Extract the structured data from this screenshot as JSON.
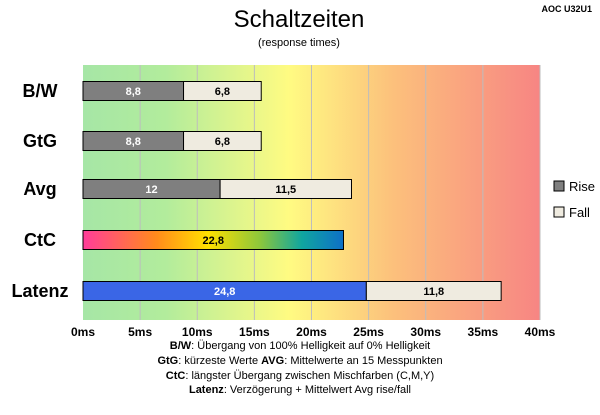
{
  "model": "AOC U32U1",
  "chart_data": {
    "type": "bar",
    "title": "Schaltzeiten",
    "subtitle": "(response times)",
    "categories": [
      "B/W",
      "GtG",
      "Avg",
      "CtC",
      "Latenz"
    ],
    "series": [
      {
        "name": "Rise",
        "values": [
          8.8,
          8.8,
          12,
          22.8,
          24.8
        ]
      },
      {
        "name": "Fall",
        "values": [
          6.8,
          6.8,
          11.5,
          null,
          11.8
        ]
      }
    ],
    "value_labels": [
      [
        "8,8",
        "6,8"
      ],
      [
        "8,8",
        "6,8"
      ],
      [
        "12",
        "11,5"
      ],
      [
        "22,8",
        ""
      ],
      [
        "24,8",
        "11,8"
      ]
    ],
    "x_ticks": [
      "0ms",
      "5ms",
      "10ms",
      "15ms",
      "20ms",
      "25ms",
      "30ms",
      "35ms",
      "40ms"
    ],
    "xlim": [
      0,
      40
    ],
    "stacked": true,
    "orientation": "horizontal",
    "grid": "vertical",
    "legend_position": "right",
    "colors": {
      "rise": "#7f7f7f",
      "fall": "#efebe0",
      "latenz": "#3a66e6",
      "bg_green": "#a6e6a6",
      "bg_yellow": "#fffb82",
      "bg_red": "#f78583"
    }
  },
  "notes": [
    {
      "bold": "B/W",
      "text": ":  Übergang von 100% Helligkeit auf 0% Helligkeit"
    },
    {
      "bold": "GtG",
      "text": ": kürzeste  Werte",
      "bold2": "AVG",
      "text2": ": Mittelwerte  an 15 Messpunkten"
    },
    {
      "bold": "CtC",
      "text": ": längster Übergang  zwischen Mischfarben  (C,M,Y)"
    },
    {
      "bold": "Latenz",
      "text": ": Verzögerung  + Mittelwert Avg rise/fall"
    }
  ]
}
